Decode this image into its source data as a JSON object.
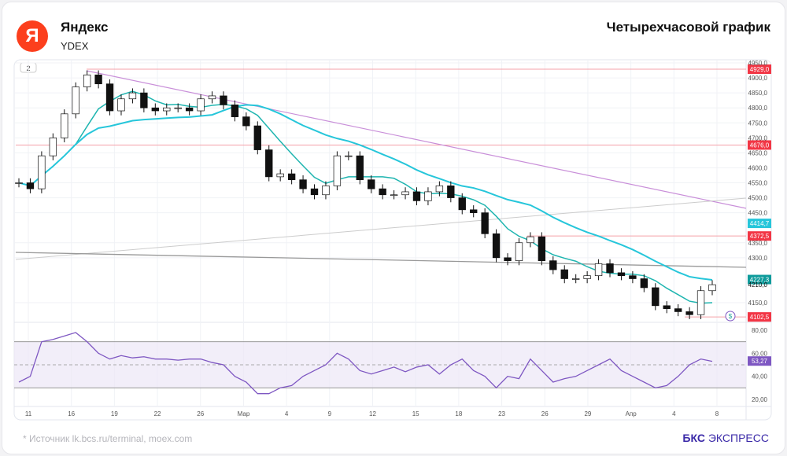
{
  "header": {
    "company": "Яндекс",
    "ticker": "YDEX",
    "title": "Четырехчасовой график",
    "logo_letter": "Я"
  },
  "footer": {
    "source": "* Источник lk.bcs.ru/terminal, moex.com",
    "brand_bold": "БКС",
    "brand_rest": "ЭКСПРЕСС"
  },
  "chart_data": {
    "type": "candlestick",
    "interval_badge": "2",
    "price_ylim": [
      4100,
      4950
    ],
    "price_ticks": [
      "4950,0",
      "4900,0",
      "4850,0",
      "4800,0",
      "4750,0",
      "4700,0",
      "4650,0",
      "4600,0",
      "4550,0",
      "4500,0",
      "4450,0",
      "4350,0",
      "4300,0",
      "4150,0"
    ],
    "x_ticks": [
      "11",
      "16",
      "19",
      "22",
      "26",
      "Мар",
      "4",
      "9",
      "12",
      "15",
      "18",
      "23",
      "26",
      "29",
      "Апр",
      "4",
      "8"
    ],
    "closes": [
      4550,
      4530,
      4640,
      4700,
      4780,
      4870,
      4910,
      4880,
      4790,
      4830,
      4850,
      4800,
      4790,
      4800,
      4800,
      4790,
      4830,
      4840,
      4810,
      4770,
      4740,
      4660,
      4570,
      4580,
      4560,
      4530,
      4510,
      4540,
      4640,
      4640,
      4560,
      4530,
      4510,
      4510,
      4520,
      4490,
      4520,
      4540,
      4500,
      4460,
      4450,
      4380,
      4300,
      4290,
      4350,
      4370,
      4290,
      4260,
      4230,
      4230,
      4240,
      4280,
      4250,
      4240,
      4230,
      4200,
      4140,
      4130,
      4120,
      4110,
      4190,
      4210
    ],
    "levels": [
      {
        "value": 4929.0,
        "label": "4929,0"
      },
      {
        "value": 4676.0,
        "label": "4676,0"
      },
      {
        "value": 4372.5,
        "label": "4372,5"
      },
      {
        "value": 4102.5,
        "label": "4102,5"
      }
    ],
    "ma_labels": [
      {
        "label": "4414,7",
        "color": "#26c6da"
      },
      {
        "label": "4227,3",
        "color": "#0f9b9b"
      }
    ],
    "last_price": "4210,0",
    "rsi": {
      "ylim": [
        10,
        90
      ],
      "ticks": [
        "80,00",
        "60,00",
        "40,00",
        "20,00"
      ],
      "band": [
        30,
        70
      ],
      "last": "53,27",
      "values": [
        35,
        40,
        70,
        72,
        75,
        78,
        70,
        60,
        55,
        58,
        56,
        57,
        55,
        55,
        54,
        55,
        55,
        52,
        50,
        40,
        35,
        25,
        25,
        30,
        32,
        40,
        45,
        50,
        60,
        55,
        45,
        42,
        45,
        48,
        44,
        48,
        50,
        42,
        50,
        55,
        45,
        40,
        30,
        40,
        38,
        55,
        45,
        35,
        38,
        40,
        45,
        50,
        55,
        45,
        40,
        35,
        30,
        32,
        40,
        50,
        55,
        53
      ]
    },
    "colors": {
      "up": "#ffffff",
      "down": "#111111",
      "ma_fast": "#1fb5b0",
      "ma_slow": "#26c6da",
      "level": "#f23645",
      "rsi": "#7e57c2",
      "trend": "#c98fd9"
    }
  }
}
